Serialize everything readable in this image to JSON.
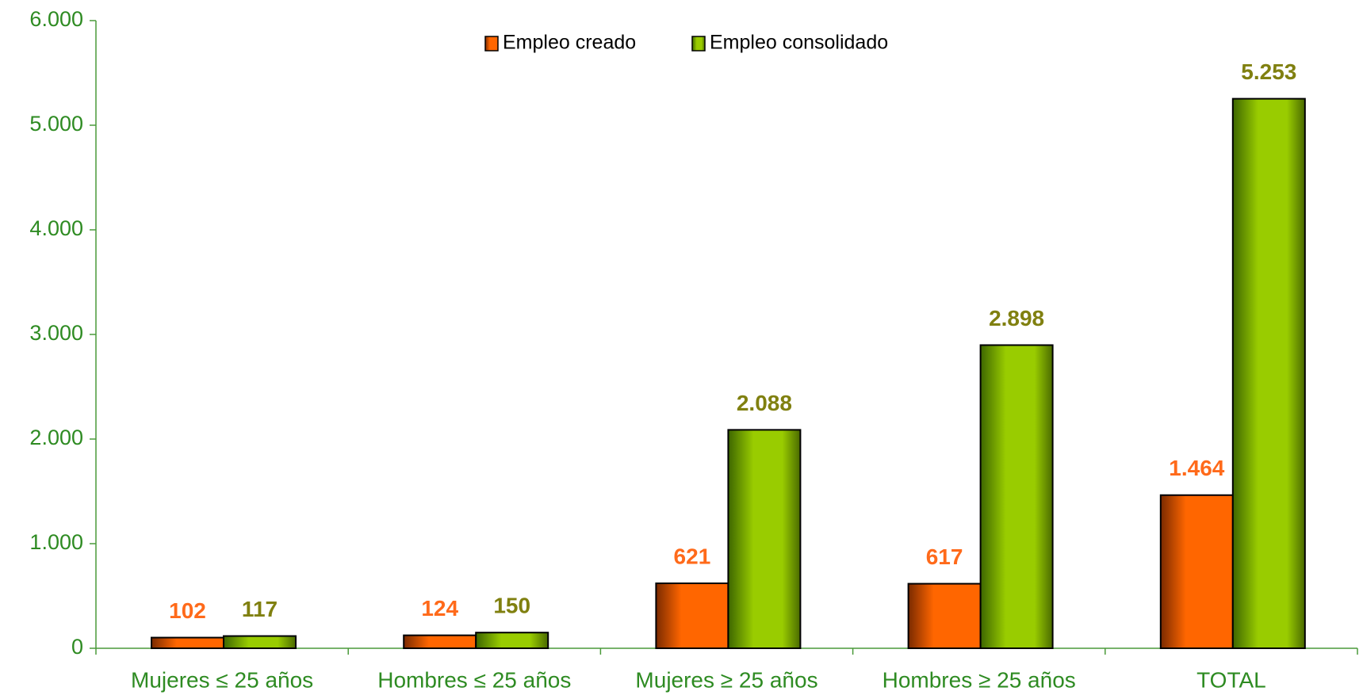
{
  "chart_data": {
    "type": "bar",
    "categories": [
      "Mujeres ≤  25 años",
      "Hombres ≤  25 años",
      "Mujeres ≥  25 años",
      "Hombres ≥  25 años",
      "TOTAL"
    ],
    "series": [
      {
        "name": "Empleo creado",
        "color": "#ff6600",
        "label_color": "#ff6a1a",
        "values": [
          102,
          124,
          621,
          617,
          1464
        ],
        "value_labels": [
          "102",
          "124",
          "621",
          "617",
          "1.464"
        ]
      },
      {
        "name": "Empleo consolidado",
        "color": "#99cc00",
        "label_color": "#808010",
        "values": [
          117,
          150,
          2088,
          2898,
          5253
        ],
        "value_labels": [
          "117",
          "150",
          "2.088",
          "2.898",
          "5.253"
        ]
      }
    ],
    "ylim": [
      0,
      6000
    ],
    "yticks": [
      {
        "value": 0,
        "label": "0"
      },
      {
        "value": 1000,
        "label": "1.000"
      },
      {
        "value": 2000,
        "label": "2.000"
      },
      {
        "value": 3000,
        "label": "3.000"
      },
      {
        "value": 4000,
        "label": "4.000"
      },
      {
        "value": 5000,
        "label": "5.000"
      },
      {
        "value": 6000,
        "label": "6.000"
      }
    ],
    "legend": "top"
  }
}
